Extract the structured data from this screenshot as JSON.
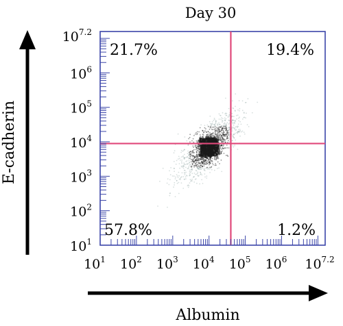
{
  "chart_data": {
    "type": "scatter",
    "title": "Day 30",
    "xlabel": "Albumin",
    "ylabel": "E-cadherin",
    "xscale": "log",
    "yscale": "log",
    "xlim": [
      "10^1",
      "10^7.2"
    ],
    "ylim": [
      "10^1",
      "10^7.2"
    ],
    "x_ticks": [
      {
        "base": "10",
        "exp": "1"
      },
      {
        "base": "10",
        "exp": "2"
      },
      {
        "base": "10",
        "exp": "3"
      },
      {
        "base": "10",
        "exp": "4"
      },
      {
        "base": "10",
        "exp": "5"
      },
      {
        "base": "10",
        "exp": "6"
      },
      {
        "base": "10",
        "exp": "7.2"
      }
    ],
    "y_ticks": [
      {
        "base": "10",
        "exp": "1"
      },
      {
        "base": "10",
        "exp": "2"
      },
      {
        "base": "10",
        "exp": "3"
      },
      {
        "base": "10",
        "exp": "4"
      },
      {
        "base": "10",
        "exp": "5"
      },
      {
        "base": "10",
        "exp": "6"
      },
      {
        "base": "10",
        "exp": "7.2"
      }
    ],
    "gate_lines": {
      "x_log": 4.6,
      "y_log": 3.95,
      "color": "#e0487a"
    },
    "quadrants": {
      "upper_left": "21.7%",
      "upper_right": "19.4%",
      "lower_left": "57.8%",
      "lower_right": "1.2%"
    },
    "frame_color": "#3a44a8",
    "point_color": "#1a1a1a",
    "cluster": {
      "center_x_log": 4.0,
      "center_y_log": 3.85,
      "spread_x": 0.45,
      "spread_y": 0.45,
      "count": 1400
    }
  }
}
